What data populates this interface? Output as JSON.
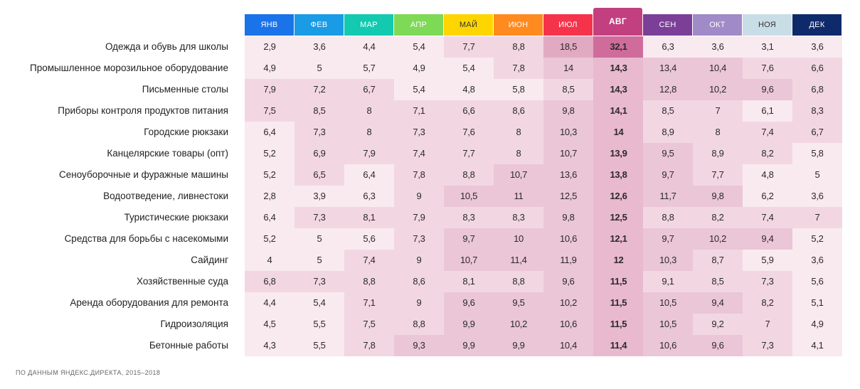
{
  "source_note": "ПО ДАННЫМ ЯНДЕКС.ДИРЕКТА, 2015–2018",
  "highlight_month_index": 7,
  "colors": {
    "month_headers": [
      "#1a73e8",
      "#1a9be6",
      "#13c9b0",
      "#7ed957",
      "#ffd500",
      "#ff8a1f",
      "#f5344b",
      "#c2407f",
      "#7b3f98",
      "#a18ac8",
      "#c9dde6",
      "#0f2a6b"
    ],
    "month_text": [
      "#ffffff",
      "#ffffff",
      "#ffffff",
      "#ffffff",
      "#333333",
      "#ffffff",
      "#ffffff",
      "#ffffff",
      "#ffffff",
      "#ffffff",
      "#333333",
      "#ffffff"
    ],
    "cell_scale": [
      "#f9eaf0",
      "#f2d7e2",
      "#ebc6d7",
      "#e2aac2",
      "#cf6c9b"
    ],
    "highlight_column": "#e9b9cf"
  },
  "chart_data": {
    "type": "heatmap",
    "categories": [
      "ЯНВ",
      "ФЕВ",
      "МАР",
      "АПР",
      "МАЙ",
      "ИЮН",
      "ИЮЛ",
      "АВГ",
      "СЕН",
      "ОКТ",
      "НОЯ",
      "ДЕК"
    ],
    "rows": [
      {
        "label": "Одежда и обувь для школы",
        "values": [
          "2,9",
          "3,6",
          "4,4",
          "5,4",
          "7,7",
          "8,8",
          "18,5",
          "32,1",
          "6,3",
          "3,6",
          "3,1",
          "3,6"
        ]
      },
      {
        "label": "Промышленное морозильное оборудование",
        "values": [
          "4,9",
          "5",
          "5,7",
          "4,9",
          "5,4",
          "7,8",
          "14",
          "14,3",
          "13,4",
          "10,4",
          "7,6",
          "6,6"
        ]
      },
      {
        "label": "Письменные столы",
        "values": [
          "7,9",
          "7,2",
          "6,7",
          "5,4",
          "4,8",
          "5,8",
          "8,5",
          "14,3",
          "12,8",
          "10,2",
          "9,6",
          "6,8"
        ]
      },
      {
        "label": "Приборы контроля продуктов питания",
        "values": [
          "7,5",
          "8,5",
          "8",
          "7,1",
          "6,6",
          "8,6",
          "9,8",
          "14,1",
          "8,5",
          "7",
          "6,1",
          "8,3"
        ]
      },
      {
        "label": "Городские рюкзаки",
        "values": [
          "6,4",
          "7,3",
          "8",
          "7,3",
          "7,6",
          "8",
          "10,3",
          "14",
          "8,9",
          "8",
          "7,4",
          "6,7"
        ]
      },
      {
        "label": "Канцелярские товары (опт)",
        "values": [
          "5,2",
          "6,9",
          "7,9",
          "7,4",
          "7,7",
          "8",
          "10,7",
          "13,9",
          "9,5",
          "8,9",
          "8,2",
          "5,8"
        ]
      },
      {
        "label": "Сеноуборочные и фуражные машины",
        "values": [
          "5,2",
          "6,5",
          "6,4",
          "7,8",
          "8,8",
          "10,7",
          "13,6",
          "13,8",
          "9,7",
          "7,7",
          "4,8",
          "5"
        ]
      },
      {
        "label": "Водоотведение, ливнестоки",
        "values": [
          "2,8",
          "3,9",
          "6,3",
          "9",
          "10,5",
          "11",
          "12,5",
          "12,6",
          "11,7",
          "9,8",
          "6,2",
          "3,6"
        ]
      },
      {
        "label": "Туристические рюкзаки",
        "values": [
          "6,4",
          "7,3",
          "8,1",
          "7,9",
          "8,3",
          "8,3",
          "9,8",
          "12,5",
          "8,8",
          "8,2",
          "7,4",
          "7"
        ]
      },
      {
        "label": "Средства для борьбы с насекомыми",
        "values": [
          "5,2",
          "5",
          "5,6",
          "7,3",
          "9,7",
          "10",
          "10,6",
          "12,1",
          "9,7",
          "10,2",
          "9,4",
          "5,2"
        ]
      },
      {
        "label": "Сайдинг",
        "values": [
          "4",
          "5",
          "7,4",
          "9",
          "10,7",
          "11,4",
          "11,9",
          "12",
          "10,3",
          "8,7",
          "5,9",
          "3,6"
        ]
      },
      {
        "label": "Хозяйственные суда",
        "values": [
          "6,8",
          "7,3",
          "8,8",
          "8,6",
          "8,1",
          "8,8",
          "9,6",
          "11,5",
          "9,1",
          "8,5",
          "7,3",
          "5,6"
        ]
      },
      {
        "label": "Аренда оборудования для ремонта",
        "values": [
          "4,4",
          "5,4",
          "7,1",
          "9",
          "9,6",
          "9,5",
          "10,2",
          "11,5",
          "10,5",
          "9,4",
          "8,2",
          "5,1"
        ]
      },
      {
        "label": "Гидроизоляция",
        "values": [
          "4,5",
          "5,5",
          "7,5",
          "8,8",
          "9,9",
          "10,2",
          "10,6",
          "11,5",
          "10,5",
          "9,2",
          "7",
          "4,9"
        ]
      },
      {
        "label": "Бетонные работы",
        "values": [
          "4,3",
          "5,5",
          "7,8",
          "9,3",
          "9,9",
          "9,9",
          "10,4",
          "11,4",
          "10,6",
          "9,6",
          "7,3",
          "4,1"
        ]
      }
    ]
  }
}
